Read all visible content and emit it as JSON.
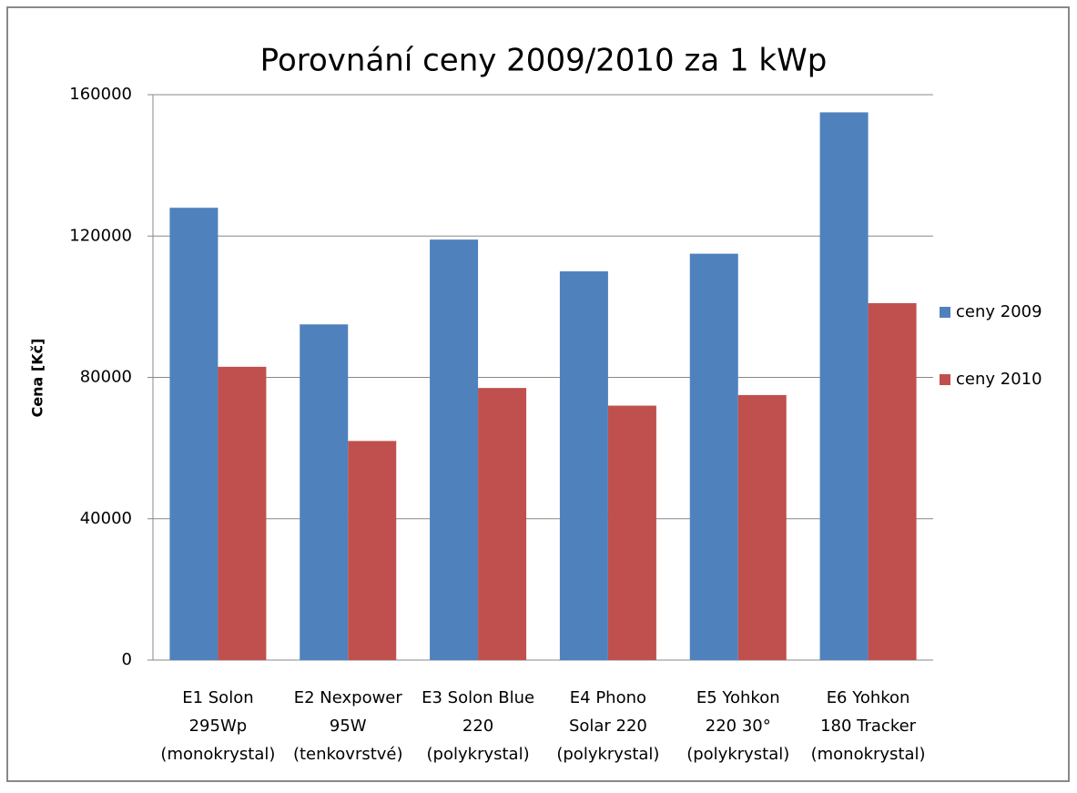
{
  "chart_data": {
    "type": "bar",
    "title": "Porovnání ceny 2009/2010 za 1 kWp",
    "y_label": "Cena [Kč]",
    "categories": [
      [
        "E1 Solon",
        "295Wp",
        "(monokrystal)"
      ],
      [
        "E2 Nexpower",
        "95W",
        "(tenkovrstvé)"
      ],
      [
        "E3 Solon Blue",
        "220",
        "(polykrystal)"
      ],
      [
        "E4 Phono",
        "Solar 220",
        "(polykrystal)"
      ],
      [
        "E5 Yohkon",
        "220 30°",
        "(polykrystal)"
      ],
      [
        "E6 Yohkon",
        "180 Tracker",
        "(monokrystal)"
      ]
    ],
    "series": [
      {
        "name": "ceny 2009",
        "color": "#4f81bd",
        "values": [
          128000,
          95000,
          119000,
          110000,
          115000,
          155000
        ]
      },
      {
        "name": "ceny 2010",
        "color": "#c0504d",
        "values": [
          83000,
          62000,
          77000,
          72000,
          75000,
          101000
        ]
      }
    ],
    "ylim": [
      0,
      160000
    ],
    "yticks": [
      0,
      40000,
      80000,
      120000,
      160000
    ],
    "grid": true,
    "legend": "right"
  }
}
